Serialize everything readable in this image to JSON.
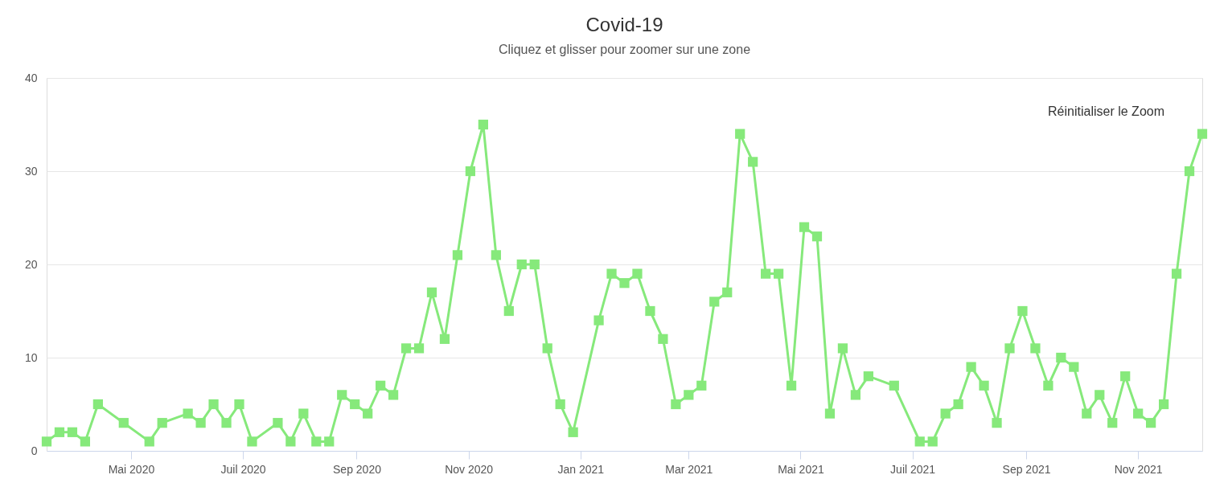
{
  "chart_data": {
    "type": "line",
    "title": "Covid-19",
    "subtitle": "Cliquez et glisser pour zoomer sur une zone",
    "annotations": [
      "Réinitialiser le Zoom"
    ],
    "x": [
      "2020-03-16",
      "2020-03-23",
      "2020-03-30",
      "2020-04-06",
      "2020-04-13",
      "2020-04-27",
      "2020-05-11",
      "2020-05-18",
      "2020-06-01",
      "2020-06-08",
      "2020-06-15",
      "2020-06-22",
      "2020-06-29",
      "2020-07-06",
      "2020-07-20",
      "2020-07-27",
      "2020-08-03",
      "2020-08-10",
      "2020-08-17",
      "2020-08-24",
      "2020-08-31",
      "2020-09-07",
      "2020-09-14",
      "2020-09-21",
      "2020-09-28",
      "2020-10-05",
      "2020-10-12",
      "2020-10-19",
      "2020-10-26",
      "2020-11-02",
      "2020-11-09",
      "2020-11-16",
      "2020-11-23",
      "2020-11-30",
      "2020-12-07",
      "2020-12-14",
      "2020-12-21",
      "2020-12-28",
      "2021-01-11",
      "2021-01-18",
      "2021-01-25",
      "2021-02-01",
      "2021-02-08",
      "2021-02-15",
      "2021-02-22",
      "2021-03-01",
      "2021-03-08",
      "2021-03-15",
      "2021-03-22",
      "2021-03-29",
      "2021-04-05",
      "2021-04-12",
      "2021-04-19",
      "2021-04-26",
      "2021-05-03",
      "2021-05-10",
      "2021-05-17",
      "2021-05-24",
      "2021-05-31",
      "2021-06-07",
      "2021-06-21",
      "2021-07-05",
      "2021-07-12",
      "2021-07-19",
      "2021-07-26",
      "2021-08-02",
      "2021-08-09",
      "2021-08-16",
      "2021-08-23",
      "2021-08-30",
      "2021-09-06",
      "2021-09-13",
      "2021-09-20",
      "2021-09-27",
      "2021-10-04",
      "2021-10-11",
      "2021-10-18",
      "2021-10-25",
      "2021-11-01",
      "2021-11-08",
      "2021-11-15",
      "2021-11-22",
      "2021-11-29",
      "2021-12-06"
    ],
    "series": [
      {
        "color": "#86e97b",
        "values": [
          1,
          2,
          2,
          1,
          5,
          3,
          1,
          3,
          4,
          3,
          5,
          3,
          5,
          1,
          3,
          1,
          4,
          1,
          1,
          6,
          5,
          4,
          7,
          6,
          11,
          11,
          17,
          12,
          21,
          30,
          35,
          21,
          15,
          20,
          20,
          11,
          5,
          2,
          14,
          19,
          18,
          19,
          15,
          12,
          5,
          6,
          7,
          16,
          17,
          34,
          31,
          19,
          19,
          7,
          24,
          23,
          4,
          11,
          6,
          8,
          7,
          1,
          1,
          4,
          5,
          9,
          7,
          3,
          11,
          15,
          11,
          7,
          10,
          9,
          4,
          6,
          3,
          8,
          4,
          3,
          5,
          19,
          30,
          34
        ]
      }
    ],
    "xlim": [
      "2020-03-16",
      "2021-12-06"
    ],
    "xticks": [
      {
        "value": "2020-05-01",
        "label": "Mai 2020"
      },
      {
        "value": "2020-07-01",
        "label": "Juil 2020"
      },
      {
        "value": "2020-09-01",
        "label": "Sep 2020"
      },
      {
        "value": "2020-11-01",
        "label": "Nov 2020"
      },
      {
        "value": "2021-01-01",
        "label": "Jan 2021"
      },
      {
        "value": "2021-03-01",
        "label": "Mar 2021"
      },
      {
        "value": "2021-05-01",
        "label": "Mai 2021"
      },
      {
        "value": "2021-07-01",
        "label": "Juil 2021"
      },
      {
        "value": "2021-09-01",
        "label": "Sep 2021"
      },
      {
        "value": "2021-11-01",
        "label": "Nov 2021"
      }
    ],
    "ylim": [
      0,
      40
    ],
    "yticks": [
      0,
      10,
      20,
      30,
      40
    ],
    "grid": "y",
    "marker": "square",
    "line_style": "solid"
  }
}
